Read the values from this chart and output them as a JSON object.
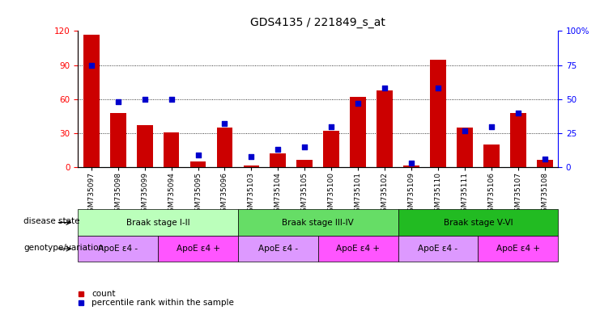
{
  "title": "GDS4135 / 221849_s_at",
  "samples": [
    "GSM735097",
    "GSM735098",
    "GSM735099",
    "GSM735094",
    "GSM735095",
    "GSM735096",
    "GSM735103",
    "GSM735104",
    "GSM735105",
    "GSM735100",
    "GSM735101",
    "GSM735102",
    "GSM735109",
    "GSM735110",
    "GSM735111",
    "GSM735106",
    "GSM735107",
    "GSM735108"
  ],
  "counts": [
    117,
    48,
    37,
    31,
    5,
    35,
    2,
    12,
    7,
    32,
    62,
    68,
    2,
    95,
    35,
    20,
    48,
    7
  ],
  "percentiles": [
    75,
    48,
    50,
    50,
    9,
    32,
    8,
    13,
    15,
    30,
    47,
    58,
    3,
    58,
    27,
    30,
    40,
    6
  ],
  "bar_color": "#CC0000",
  "dot_color": "#0000CC",
  "left_ylim": [
    0,
    120
  ],
  "right_ylim": [
    0,
    100
  ],
  "left_yticks": [
    0,
    30,
    60,
    90,
    120
  ],
  "right_yticks": [
    0,
    25,
    50,
    75,
    100
  ],
  "right_yticklabels": [
    "0",
    "25",
    "50",
    "75",
    "100%"
  ],
  "disease_state_label": "disease state",
  "genotype_label": "genotype/variation",
  "groups": [
    {
      "label": "Braak stage I-II",
      "start": 0,
      "end": 6,
      "color": "#bbffbb"
    },
    {
      "label": "Braak stage III-IV",
      "start": 6,
      "end": 12,
      "color": "#66dd66"
    },
    {
      "label": "Braak stage V-VI",
      "start": 12,
      "end": 18,
      "color": "#22bb22"
    }
  ],
  "genotype_groups": [
    {
      "label": "ApoE ε4 -",
      "start": 0,
      "end": 3,
      "color": "#dd99ff"
    },
    {
      "label": "ApoE ε4 +",
      "start": 3,
      "end": 6,
      "color": "#ff55ff"
    },
    {
      "label": "ApoE ε4 -",
      "start": 6,
      "end": 9,
      "color": "#dd99ff"
    },
    {
      "label": "ApoE ε4 +",
      "start": 9,
      "end": 12,
      "color": "#ff55ff"
    },
    {
      "label": "ApoE ε4 -",
      "start": 12,
      "end": 15,
      "color": "#dd99ff"
    },
    {
      "label": "ApoE ε4 +",
      "start": 15,
      "end": 18,
      "color": "#ff55ff"
    }
  ],
  "legend_count_label": "count",
  "legend_pct_label": "percentile rank within the sample",
  "title_fontsize": 10,
  "tick_fontsize": 6.5,
  "label_fontsize": 7.5,
  "annot_fontsize": 7.5
}
